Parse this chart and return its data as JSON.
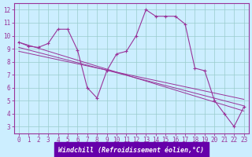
{
  "xlabel": "Windchill (Refroidissement éolien,°C)",
  "background_color": "#cceeff",
  "plot_bg_color": "#cceeff",
  "line_color": "#993399",
  "spine_color": "#993399",
  "bottom_bar_color": "#6600aa",
  "xlim": [
    -0.5,
    23.5
  ],
  "ylim": [
    2.5,
    12.5
  ],
  "xticks": [
    0,
    1,
    2,
    3,
    4,
    5,
    6,
    7,
    8,
    9,
    10,
    11,
    12,
    13,
    14,
    15,
    16,
    17,
    18,
    19,
    20,
    21,
    22,
    23
  ],
  "yticks": [
    3,
    4,
    5,
    6,
    7,
    8,
    9,
    10,
    11,
    12
  ],
  "series": [
    [
      0,
      9.5
    ],
    [
      1,
      9.2
    ],
    [
      2,
      9.1
    ],
    [
      3,
      9.4
    ],
    [
      4,
      10.5
    ],
    [
      5,
      10.5
    ],
    [
      6,
      8.9
    ],
    [
      7,
      6.0
    ],
    [
      8,
      5.2
    ],
    [
      9,
      7.3
    ],
    [
      10,
      8.6
    ],
    [
      11,
      8.8
    ],
    [
      12,
      10.0
    ],
    [
      13,
      12.0
    ],
    [
      14,
      11.5
    ],
    [
      15,
      11.5
    ],
    [
      16,
      11.5
    ],
    [
      17,
      10.9
    ],
    [
      18,
      7.5
    ],
    [
      19,
      7.3
    ],
    [
      20,
      5.0
    ],
    [
      21,
      4.0
    ],
    [
      22,
      3.0
    ],
    [
      23,
      4.5
    ]
  ],
  "regression_lines": [
    [
      [
        0,
        9.5
      ],
      [
        23,
        4.2
      ]
    ],
    [
      [
        0,
        9.1
      ],
      [
        23,
        4.6
      ]
    ],
    [
      [
        0,
        8.8
      ],
      [
        23,
        5.1
      ]
    ]
  ],
  "tick_fontsize": 5.5,
  "xlabel_fontsize": 6.0
}
